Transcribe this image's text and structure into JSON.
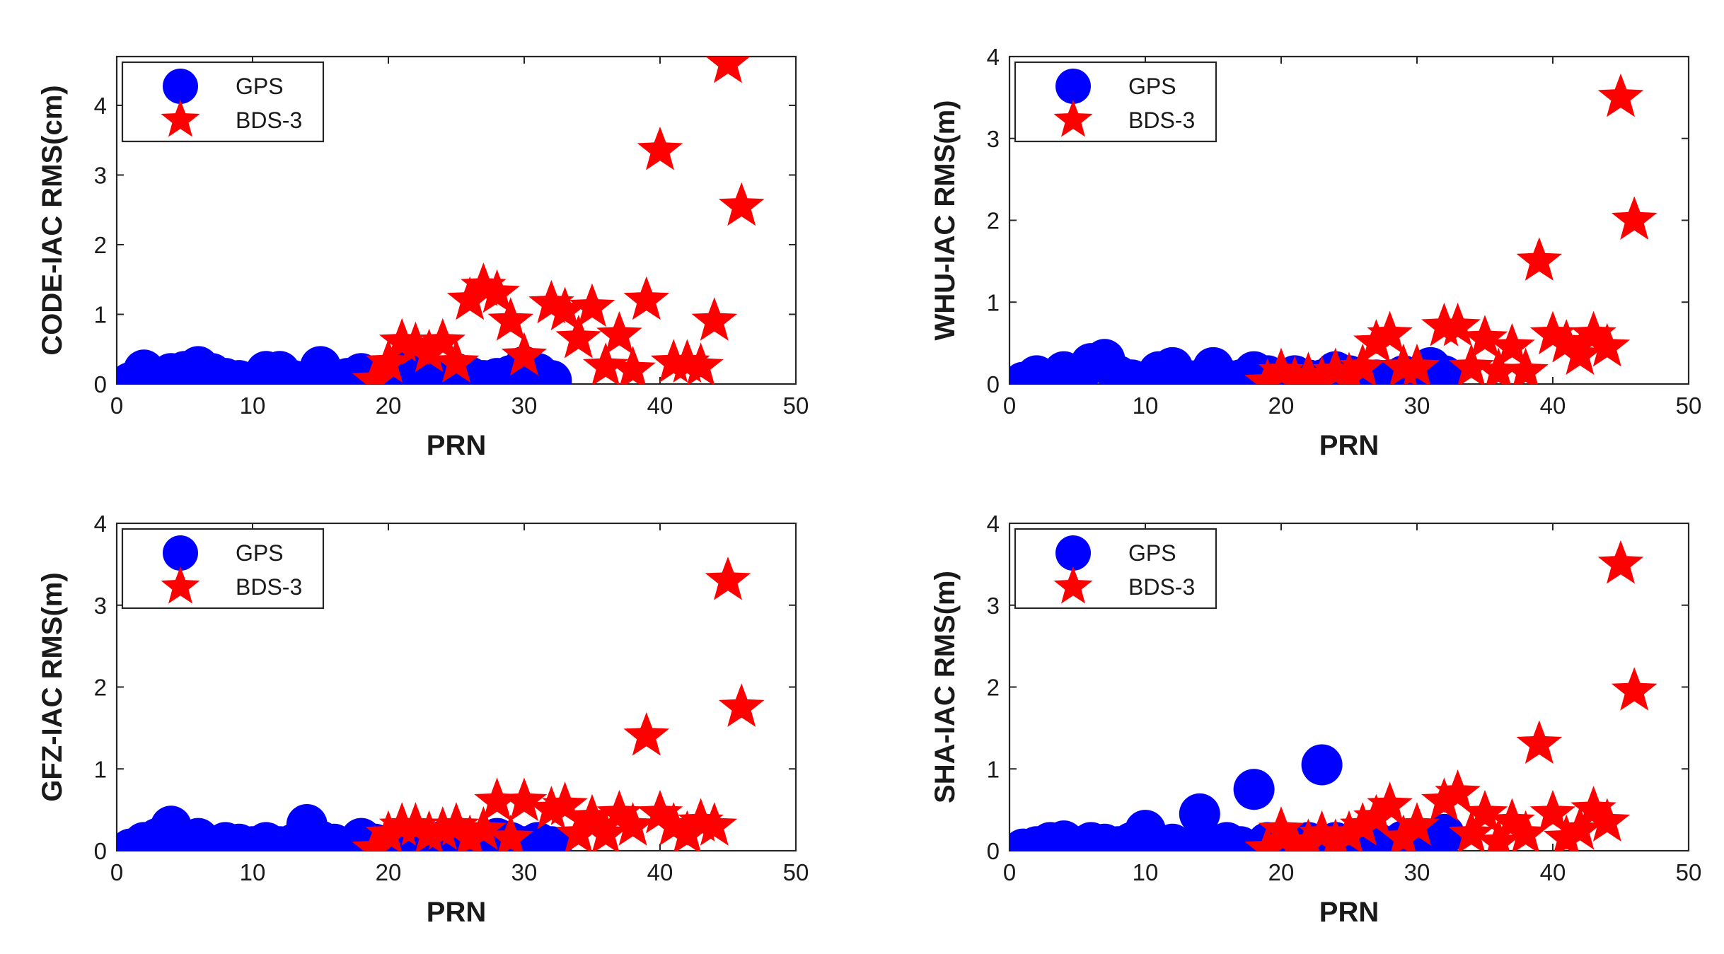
{
  "colors": {
    "gps": "#0000ff",
    "bds3": "#ff0000",
    "axis": "#262626"
  },
  "chart_data": [
    {
      "type": "scatter",
      "xlabel": "PRN",
      "ylabel": "CODE-IAC RMS(cm)",
      "xlim": [
        0,
        50
      ],
      "ylim": [
        0,
        4.7
      ],
      "xticks": [
        "0",
        "10",
        "20",
        "30",
        "40",
        "50"
      ],
      "yticks": [
        "0",
        "1",
        "2",
        "3",
        "4"
      ],
      "legend": [
        "GPS",
        "BDS-3"
      ],
      "series": [
        {
          "name": "GPS",
          "marker": "circle",
          "x": [
            1,
            2,
            3,
            4,
            5,
            6,
            7,
            8,
            9,
            10,
            11,
            12,
            13,
            14,
            15,
            16,
            17,
            18,
            19,
            20,
            21,
            22,
            23,
            24,
            25,
            26,
            27,
            28,
            29,
            30,
            31,
            32
          ],
          "y": [
            0.02,
            0.2,
            0.05,
            0.15,
            0.18,
            0.25,
            0.15,
            0.08,
            0.05,
            0.03,
            0.18,
            0.18,
            0.05,
            0.03,
            0.25,
            0.05,
            0.08,
            0.15,
            0.1,
            0.08,
            0.2,
            0.12,
            0.05,
            0.08,
            0.15,
            0.1,
            0.05,
            0.08,
            0.12,
            0.25,
            0.15,
            0.05
          ]
        },
        {
          "name": "BDS-3",
          "marker": "star",
          "x": [
            19,
            20,
            21,
            22,
            23,
            24,
            25,
            26,
            27,
            28,
            29,
            30,
            32,
            33,
            34,
            35,
            36,
            37,
            38,
            39,
            40,
            41,
            42,
            43,
            44,
            45,
            46
          ],
          "y": [
            0.05,
            0.3,
            0.6,
            0.55,
            0.45,
            0.6,
            0.3,
            1.2,
            1.4,
            1.3,
            0.9,
            0.4,
            1.15,
            1.05,
            0.65,
            1.1,
            0.25,
            0.7,
            0.2,
            1.2,
            3.35,
            0.3,
            0.3,
            0.25,
            0.9,
            4.6,
            2.55
          ]
        }
      ]
    },
    {
      "type": "scatter",
      "xlabel": "PRN",
      "ylabel": "WHU-IAC RMS(m)",
      "xlim": [
        0,
        50
      ],
      "ylim": [
        0,
        4
      ],
      "xticks": [
        "0",
        "10",
        "20",
        "30",
        "40",
        "50"
      ],
      "yticks": [
        "0",
        "1",
        "2",
        "3",
        "4"
      ],
      "legend": [
        "GPS",
        "BDS-3"
      ],
      "series": [
        {
          "name": "GPS",
          "marker": "circle",
          "x": [
            1,
            2,
            3,
            4,
            5,
            6,
            7,
            8,
            9,
            10,
            11,
            12,
            13,
            14,
            15,
            16,
            17,
            18,
            19,
            20,
            21,
            22,
            23,
            24,
            25,
            26,
            27,
            28,
            29,
            30,
            31,
            32
          ],
          "y": [
            0.02,
            0.1,
            0.05,
            0.15,
            0.05,
            0.25,
            0.3,
            0.1,
            0.05,
            0.02,
            0.15,
            0.2,
            0.05,
            0.05,
            0.2,
            0.05,
            0.05,
            0.15,
            0.1,
            0.05,
            0.1,
            0.05,
            0.05,
            0.15,
            0.1,
            0.05,
            0.05,
            0.05,
            0.1,
            0.08,
            0.2,
            0.1
          ]
        },
        {
          "name": "BDS-3",
          "marker": "star",
          "x": [
            19,
            20,
            21,
            22,
            23,
            24,
            25,
            26,
            27,
            28,
            29,
            30,
            32,
            33,
            34,
            35,
            36,
            37,
            38,
            39,
            40,
            41,
            42,
            43,
            44,
            45,
            46
          ],
          "y": [
            0.02,
            0.15,
            0.05,
            0.1,
            0.05,
            0.15,
            0.1,
            0.2,
            0.5,
            0.6,
            0.2,
            0.2,
            0.7,
            0.7,
            0.2,
            0.55,
            0.15,
            0.45,
            0.15,
            1.5,
            0.6,
            0.5,
            0.35,
            0.6,
            0.45,
            3.5,
            2.0
          ]
        }
      ]
    },
    {
      "type": "scatter",
      "xlabel": "PRN",
      "ylabel": "GFZ-IAC RMS(m)",
      "xlim": [
        0,
        50
      ],
      "ylim": [
        0,
        4
      ],
      "xticks": [
        "0",
        "10",
        "20",
        "30",
        "40",
        "50"
      ],
      "yticks": [
        "0",
        "1",
        "2",
        "3",
        "4"
      ],
      "legend": [
        "GPS",
        "BDS-3"
      ],
      "series": [
        {
          "name": "GPS",
          "marker": "circle",
          "x": [
            1,
            2,
            3,
            4,
            5,
            6,
            7,
            8,
            9,
            10,
            11,
            12,
            13,
            14,
            15,
            16,
            17,
            18,
            19,
            20,
            21,
            22,
            23,
            24,
            25,
            26,
            27,
            28,
            29,
            30,
            31,
            32
          ],
          "y": [
            0.02,
            0.1,
            0.15,
            0.3,
            0.1,
            0.15,
            0.05,
            0.1,
            0.08,
            0.05,
            0.1,
            0.05,
            0.08,
            0.32,
            0.12,
            0.08,
            0.05,
            0.15,
            0.08,
            0.05,
            0.1,
            0.05,
            0.05,
            0.12,
            0.05,
            0.1,
            0.05,
            0.15,
            0.1,
            0.05,
            0.1,
            0.05
          ]
        },
        {
          "name": "BDS-3",
          "marker": "star",
          "x": [
            19,
            20,
            21,
            22,
            23,
            24,
            25,
            26,
            27,
            28,
            29,
            30,
            32,
            33,
            34,
            35,
            36,
            37,
            38,
            39,
            40,
            41,
            42,
            43,
            44,
            45,
            46
          ],
          "y": [
            0.02,
            0.2,
            0.3,
            0.3,
            0.2,
            0.25,
            0.3,
            0.15,
            0.25,
            0.6,
            0.15,
            0.6,
            0.5,
            0.55,
            0.2,
            0.4,
            0.2,
            0.45,
            0.3,
            1.4,
            0.45,
            0.3,
            0.2,
            0.35,
            0.3,
            3.3,
            1.75
          ]
        }
      ]
    },
    {
      "type": "scatter",
      "xlabel": "PRN",
      "ylabel": "SHA-IAC RMS(m)",
      "xlim": [
        0,
        50
      ],
      "ylim": [
        0,
        4
      ],
      "xticks": [
        "0",
        "10",
        "20",
        "30",
        "40",
        "50"
      ],
      "yticks": [
        "0",
        "1",
        "2",
        "3",
        "4"
      ],
      "legend": [
        "GPS",
        "BDS-3"
      ],
      "series": [
        {
          "name": "GPS",
          "marker": "circle",
          "x": [
            1,
            2,
            3,
            4,
            5,
            6,
            7,
            8,
            9,
            10,
            11,
            12,
            13,
            14,
            15,
            16,
            17,
            18,
            19,
            20,
            21,
            22,
            23,
            24,
            25,
            26,
            27,
            28,
            29,
            30,
            31,
            32
          ],
          "y": [
            0.02,
            0.05,
            0.1,
            0.12,
            0.05,
            0.1,
            0.08,
            0.05,
            0.1,
            0.25,
            0.05,
            0.08,
            0.02,
            0.45,
            0.05,
            0.1,
            0.05,
            0.75,
            0.1,
            0.08,
            0.05,
            0.1,
            1.05,
            0.1,
            0.05,
            0.08,
            0.1,
            0.05,
            0.12,
            0.05,
            0.1,
            0.2
          ]
        },
        {
          "name": "BDS-3",
          "marker": "star",
          "x": [
            19,
            20,
            21,
            22,
            23,
            24,
            25,
            26,
            27,
            28,
            29,
            30,
            32,
            33,
            34,
            35,
            36,
            37,
            38,
            39,
            40,
            41,
            42,
            43,
            44,
            45,
            46
          ],
          "y": [
            0.02,
            0.25,
            0.05,
            0.1,
            0.2,
            0.1,
            0.2,
            0.3,
            0.4,
            0.55,
            0.15,
            0.3,
            0.6,
            0.7,
            0.2,
            0.45,
            0.1,
            0.35,
            0.2,
            1.3,
            0.45,
            0.15,
            0.25,
            0.5,
            0.35,
            3.5,
            1.95
          ]
        }
      ]
    }
  ]
}
